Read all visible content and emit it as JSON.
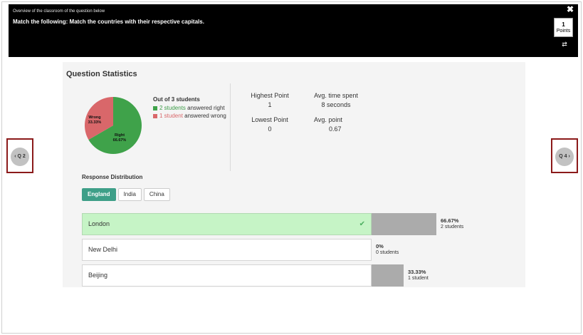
{
  "header": {
    "overview": "Overview of the classroom of the question below",
    "question": "Match the following: Match the countries with their respective capitals.",
    "points_value": "1",
    "points_label": "Points",
    "close_icon": "close-icon",
    "shuffle_icon": "shuffle-icon"
  },
  "stats": {
    "title": "Question Statistics",
    "pie": {
      "right_label": "Right",
      "right_pct": "66.67%",
      "right_value": 66.67,
      "wrong_label": "Wrong",
      "wrong_pct": "33.33%",
      "wrong_value": 33.33,
      "right_color": "#3fa24a",
      "wrong_color": "#d9676a"
    },
    "legend": {
      "heading": "Out of 3 students",
      "right_link": "2 students",
      "right_text": " answered right",
      "wrong_link": "1 student",
      "wrong_text": " answered wrong"
    },
    "highest_point_label": "Highest Point",
    "highest_point": "1",
    "lowest_point_label": "Lowest Point",
    "lowest_point": "0",
    "avg_time_label": "Avg. time spent",
    "avg_time": "8 seconds",
    "avg_point_label": "Avg. point",
    "avg_point": "0.67"
  },
  "distribution": {
    "title": "Response Distribution",
    "tabs": [
      "England",
      "India",
      "China"
    ],
    "responses": [
      {
        "label": "London",
        "pct": "66.67%",
        "count": "2 students",
        "fraction": 0.6667,
        "correct": true
      },
      {
        "label": "New Delhi",
        "pct": "0%",
        "count": "0 students",
        "fraction": 0,
        "correct": false
      },
      {
        "label": "Beijing",
        "pct": "33.33%",
        "count": "1 student",
        "fraction": 0.3333,
        "correct": false
      }
    ]
  },
  "nav": {
    "prev": "Q 2",
    "next": "Q 4"
  }
}
